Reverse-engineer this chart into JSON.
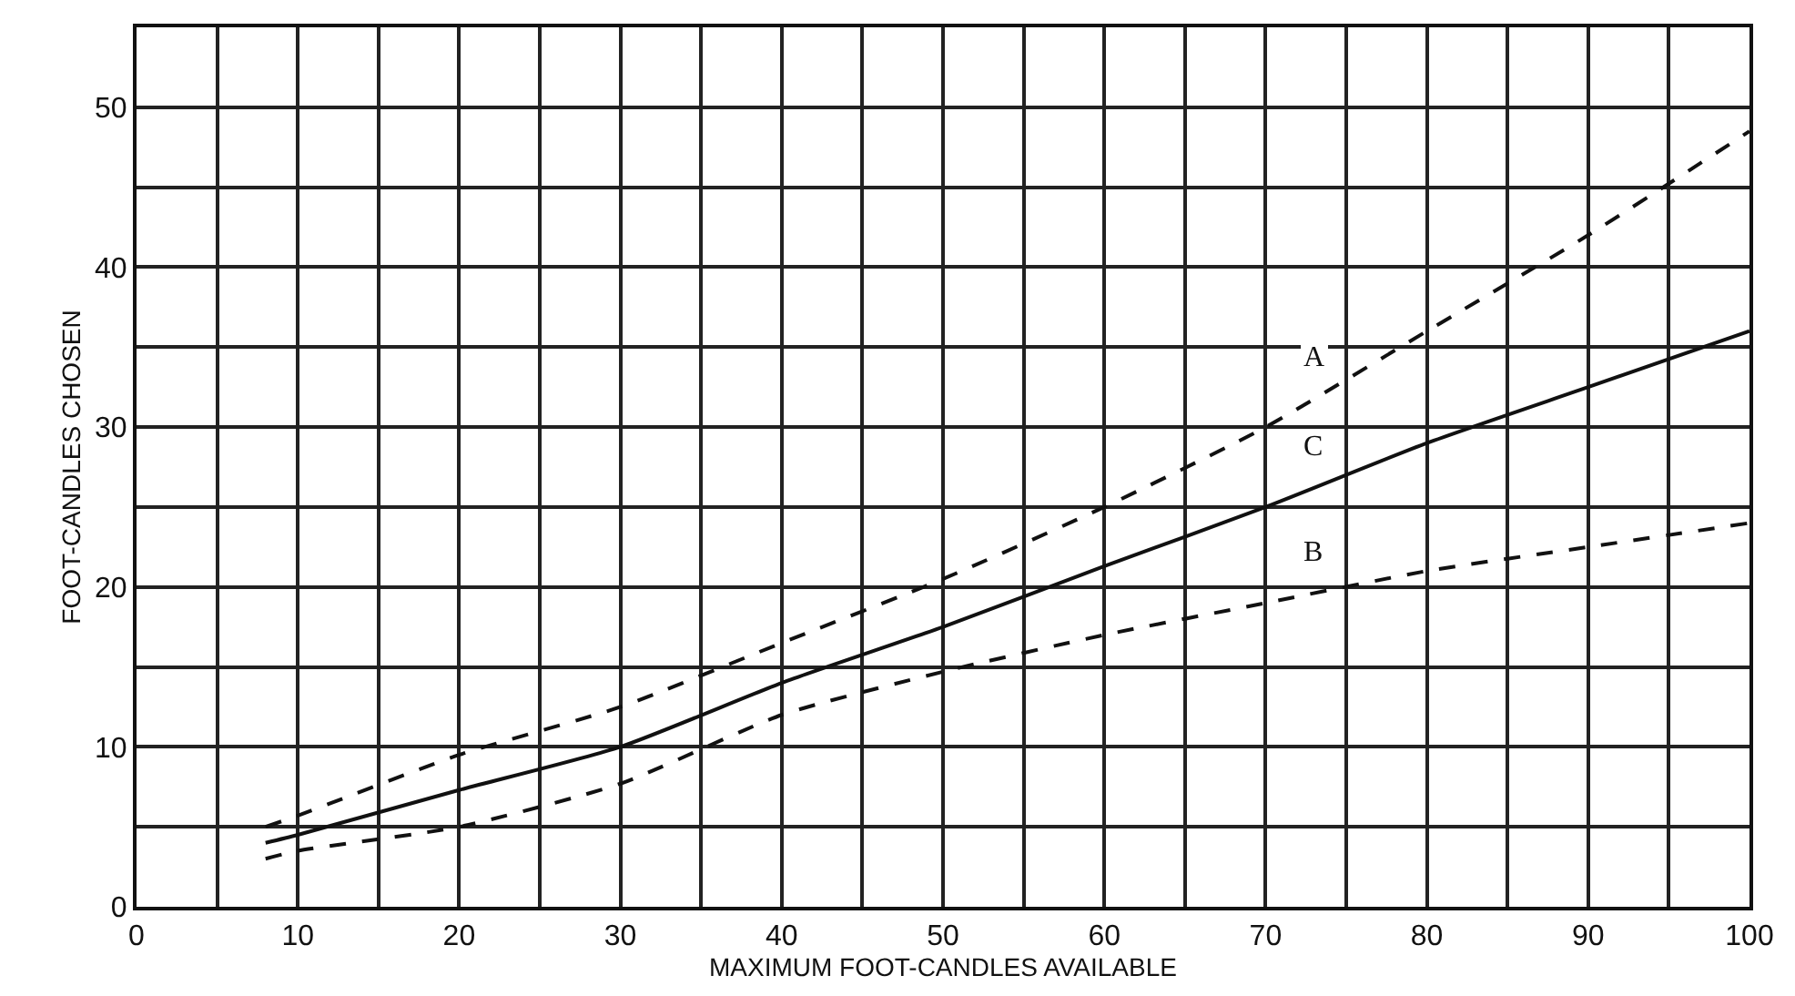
{
  "chart_data": {
    "type": "line",
    "xlabel": "MAXIMUM FOOT-CANDLES AVAILABLE",
    "ylabel": "FOOT-CANDLES CHOSEN",
    "x": [
      8,
      10,
      20,
      30,
      40,
      50,
      60,
      70,
      80,
      90,
      100
    ],
    "series": [
      {
        "name": "A",
        "color": "#111111",
        "line_style": "dashed",
        "values": [
          5,
          5.7,
          9.5,
          12.5,
          16.5,
          20.5,
          25,
          30,
          36,
          42,
          48.5
        ]
      },
      {
        "name": "C",
        "color": "#111111",
        "line_style": "solid",
        "values": [
          4,
          4.5,
          7.3,
          10,
          14,
          17.5,
          21.3,
          25,
          29,
          32.5,
          36
        ]
      },
      {
        "name": "B",
        "color": "#111111",
        "line_style": "dashed",
        "values": [
          3,
          3.5,
          5,
          7.7,
          12,
          14.7,
          17,
          19,
          21,
          22.5,
          24
        ]
      }
    ],
    "xlim": [
      0,
      100
    ],
    "ylim": [
      0,
      55
    ],
    "xticks": [
      0,
      {
        "value": 5,
        "label": null
      },
      10,
      {
        "value": 15,
        "label": null
      },
      20,
      {
        "value": 25,
        "label": null
      },
      30,
      {
        "value": 35,
        "label": null
      },
      40,
      {
        "value": 45,
        "label": null
      },
      50,
      {
        "value": 55,
        "label": null
      },
      60,
      {
        "value": 65,
        "label": null
      },
      70,
      {
        "value": 75,
        "label": null
      },
      80,
      {
        "value": 85,
        "label": null
      },
      90,
      {
        "value": 95,
        "label": null
      },
      100
    ],
    "yticks": [
      0,
      {
        "value": 5,
        "label": null
      },
      10,
      {
        "value": 15,
        "label": null
      },
      20,
      {
        "value": 25,
        "label": null
      },
      30,
      {
        "value": 35,
        "label": null
      },
      40,
      {
        "value": 45,
        "label": null
      },
      50
    ],
    "grid": true,
    "legend": false,
    "marker": "none"
  }
}
